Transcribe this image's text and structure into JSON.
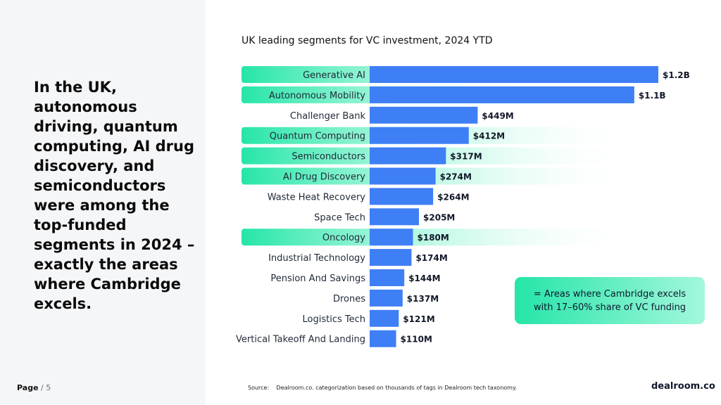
{
  "headline": "In the UK, autonomous driving, quantum computing, AI drug discovery, and semiconductors were among the top-funded segments in 2024 – exactly the areas where Cambridge excels.",
  "page": {
    "label": "Page",
    "rest": "/ 5"
  },
  "legend": "= Areas where Cambridge excels with 17–60% share of VC funding",
  "source": {
    "label": "Source:",
    "text": "Dealroom.co. categorization based on thousands of tags in Dealroom tech taxonomy."
  },
  "brand": "dealroom.co",
  "colors": {
    "bar": "#3f7ff5",
    "highlight": "#25e5a8",
    "panel": "#f5f6f8"
  },
  "chart_data": {
    "type": "bar",
    "orientation": "horizontal",
    "title": "UK leading segments for VC investment, 2024 YTD",
    "unit": "$M",
    "xlim": [
      0,
      1200
    ],
    "categories": [
      "Generative AI",
      "Autonomous Mobility",
      "Challenger Bank",
      "Quantum Computing",
      "Semiconductors",
      "AI Drug Discovery",
      "Waste Heat Recovery",
      "Space Tech",
      "Oncology",
      "Industrial Technology",
      "Pension And Savings",
      "Drones",
      "Logistics Tech",
      "Vertical Takeoff And Landing"
    ],
    "values": [
      1200,
      1100,
      449,
      412,
      317,
      274,
      264,
      205,
      180,
      174,
      144,
      137,
      121,
      110
    ],
    "labels": [
      "$1.2B",
      "$1.1B",
      "$449M",
      "$412M",
      "$317M",
      "$274M",
      "$264M",
      "$205M",
      "$180M",
      "$174M",
      "$144M",
      "$137M",
      "$121M",
      "$110M"
    ],
    "highlighted": [
      true,
      true,
      false,
      true,
      true,
      true,
      false,
      false,
      true,
      false,
      false,
      false,
      false,
      false
    ]
  }
}
